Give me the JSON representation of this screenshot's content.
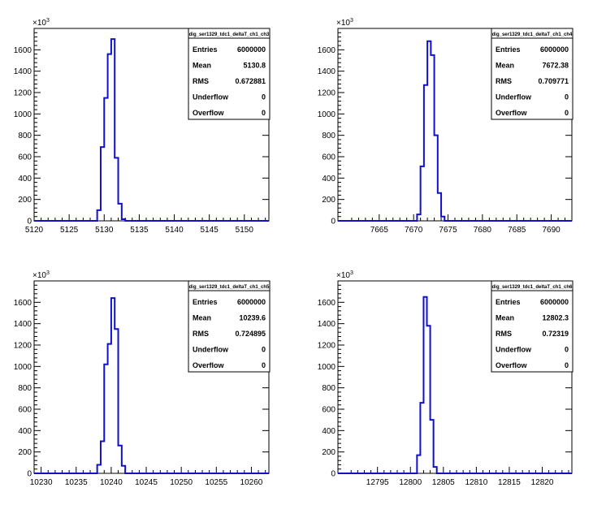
{
  "colors": {
    "histogram_line": "#1010cc",
    "axis": "#000000",
    "background": "#ffffff"
  },
  "chart_data": [
    {
      "type": "bar",
      "histogram_name": "dig_ser1329_tdc1_deltaT_ch1_ch3",
      "xlim": [
        5120,
        5153.5
      ],
      "ylim": [
        0,
        1800
      ],
      "y_multiplier_label": "×10",
      "y_multiplier_exponent": "3",
      "x_ticks": [
        "5120",
        "5125",
        "5130",
        "5135",
        "5140",
        "5145",
        "5150"
      ],
      "y_ticks": [
        "0",
        "200",
        "400",
        "600",
        "800",
        "1000",
        "1200",
        "1400",
        "1600"
      ],
      "bin_width": 0.5,
      "bins": [
        {
          "x": 5128.5,
          "y": 0
        },
        {
          "x": 5129.0,
          "y": 100
        },
        {
          "x": 5129.5,
          "y": 690
        },
        {
          "x": 5130.0,
          "y": 1150
        },
        {
          "x": 5130.5,
          "y": 1560
        },
        {
          "x": 5131.0,
          "y": 1700
        },
        {
          "x": 5131.5,
          "y": 590
        },
        {
          "x": 5132.0,
          "y": 160
        },
        {
          "x": 5132.5,
          "y": 15
        }
      ],
      "stats": [
        {
          "label": "Entries",
          "value": "6000000"
        },
        {
          "label": "Mean",
          "value": "5130.8"
        },
        {
          "label": "RMS",
          "value": "0.672881"
        },
        {
          "label": "Underflow",
          "value": "0"
        },
        {
          "label": "Overflow",
          "value": "0"
        }
      ]
    },
    {
      "type": "bar",
      "histogram_name": "dig_ser1329_tdc1_deltaT_ch1_ch4",
      "xlim": [
        7659,
        7693
      ],
      "ylim": [
        0,
        1800
      ],
      "y_multiplier_label": "×10",
      "y_multiplier_exponent": "3",
      "x_ticks": [
        "7665",
        "7670",
        "7675",
        "7680",
        "7685",
        "7690"
      ],
      "y_ticks": [
        "0",
        "200",
        "400",
        "600",
        "800",
        "1000",
        "1200",
        "1400",
        "1600"
      ],
      "bin_width": 0.5,
      "bins": [
        {
          "x": 7670.0,
          "y": 0
        },
        {
          "x": 7670.5,
          "y": 60
        },
        {
          "x": 7671.0,
          "y": 510
        },
        {
          "x": 7671.5,
          "y": 1270
        },
        {
          "x": 7672.0,
          "y": 1680
        },
        {
          "x": 7672.5,
          "y": 1550
        },
        {
          "x": 7673.0,
          "y": 800
        },
        {
          "x": 7673.5,
          "y": 260
        },
        {
          "x": 7674.0,
          "y": 40
        },
        {
          "x": 7674.5,
          "y": 0
        }
      ],
      "stats": [
        {
          "label": "Entries",
          "value": "6000000"
        },
        {
          "label": "Mean",
          "value": "7672.38"
        },
        {
          "label": "RMS",
          "value": "0.709771"
        },
        {
          "label": "Underflow",
          "value": "0"
        },
        {
          "label": "Overflow",
          "value": "0"
        }
      ]
    },
    {
      "type": "bar",
      "histogram_name": "dig_ser1329_tdc1_deltaT_ch1_ch5",
      "xlim": [
        10229,
        10262.5
      ],
      "ylim": [
        0,
        1800
      ],
      "y_multiplier_label": "×10",
      "y_multiplier_exponent": "3",
      "x_ticks": [
        "10230",
        "10235",
        "10240",
        "10245",
        "10250",
        "10255",
        "10260"
      ],
      "y_ticks": [
        "0",
        "200",
        "400",
        "600",
        "800",
        "1000",
        "1200",
        "1400",
        "1600"
      ],
      "bin_width": 0.5,
      "bins": [
        {
          "x": 10237.5,
          "y": 0
        },
        {
          "x": 10238.0,
          "y": 80
        },
        {
          "x": 10238.5,
          "y": 300
        },
        {
          "x": 10239.0,
          "y": 1020
        },
        {
          "x": 10239.5,
          "y": 1210
        },
        {
          "x": 10240.0,
          "y": 1640
        },
        {
          "x": 10240.5,
          "y": 1350
        },
        {
          "x": 10241.0,
          "y": 260
        },
        {
          "x": 10241.5,
          "y": 70
        },
        {
          "x": 10242.0,
          "y": 0
        }
      ],
      "stats": [
        {
          "label": "Entries",
          "value": "6000000"
        },
        {
          "label": "Mean",
          "value": "10239.6"
        },
        {
          "label": "RMS",
          "value": "0.724895"
        },
        {
          "label": "Underflow",
          "value": "0"
        },
        {
          "label": "Overflow",
          "value": "0"
        }
      ]
    },
    {
      "type": "bar",
      "histogram_name": "dig_ser1329_tdc1_deltaT_ch1_ch6",
      "xlim": [
        12789,
        12824.5
      ],
      "ylim": [
        0,
        1800
      ],
      "y_multiplier_label": "×10",
      "y_multiplier_exponent": "3",
      "x_ticks": [
        "12795",
        "12800",
        "12805",
        "12810",
        "12815",
        "12820"
      ],
      "y_ticks": [
        "0",
        "200",
        "400",
        "600",
        "800",
        "1000",
        "1200",
        "1400",
        "1600"
      ],
      "bin_width": 0.5,
      "bins": [
        {
          "x": 12800.5,
          "y": 0
        },
        {
          "x": 12801.0,
          "y": 170
        },
        {
          "x": 12801.5,
          "y": 660
        },
        {
          "x": 12802.0,
          "y": 1650
        },
        {
          "x": 12802.5,
          "y": 1380
        },
        {
          "x": 12803.0,
          "y": 500
        },
        {
          "x": 12803.5,
          "y": 60
        },
        {
          "x": 12804.0,
          "y": 0
        }
      ],
      "stats": [
        {
          "label": "Entries",
          "value": "6000000"
        },
        {
          "label": "Mean",
          "value": "12802.3"
        },
        {
          "label": "RMS",
          "value": "0.72319"
        },
        {
          "label": "Underflow",
          "value": "0"
        },
        {
          "label": "Overflow",
          "value": "0"
        }
      ]
    }
  ]
}
